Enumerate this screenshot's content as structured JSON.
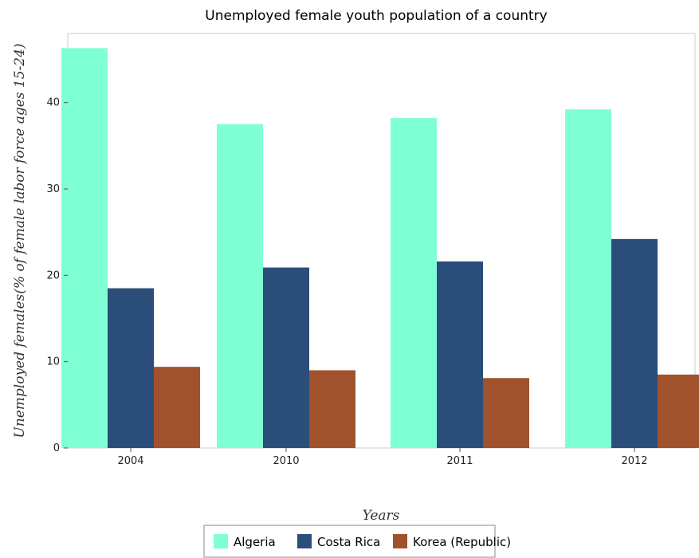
{
  "chart_data": {
    "type": "bar",
    "title": "Unemployed female youth population of a country",
    "xlabel": "Years",
    "ylabel": "Unemployed females(% of female labor force ages 15-24)",
    "categories": [
      "2004",
      "2010",
      "2011",
      "2012"
    ],
    "series": [
      {
        "name": "Algeria",
        "color": "#7fffd4",
        "values": [
          46.3,
          37.5,
          38.2,
          39.2
        ]
      },
      {
        "name": "Costa Rica",
        "color": "#2a4d7a",
        "values": [
          18.5,
          20.9,
          21.6,
          24.2
        ]
      },
      {
        "name": "Korea (Republic)",
        "color": "#a0522d",
        "values": [
          9.4,
          9.0,
          8.1,
          8.5
        ]
      }
    ],
    "ylim": [
      0,
      48
    ],
    "yticks": [
      0,
      10,
      20,
      30,
      40
    ],
    "grid": false,
    "legend_position": "bottom-center"
  }
}
